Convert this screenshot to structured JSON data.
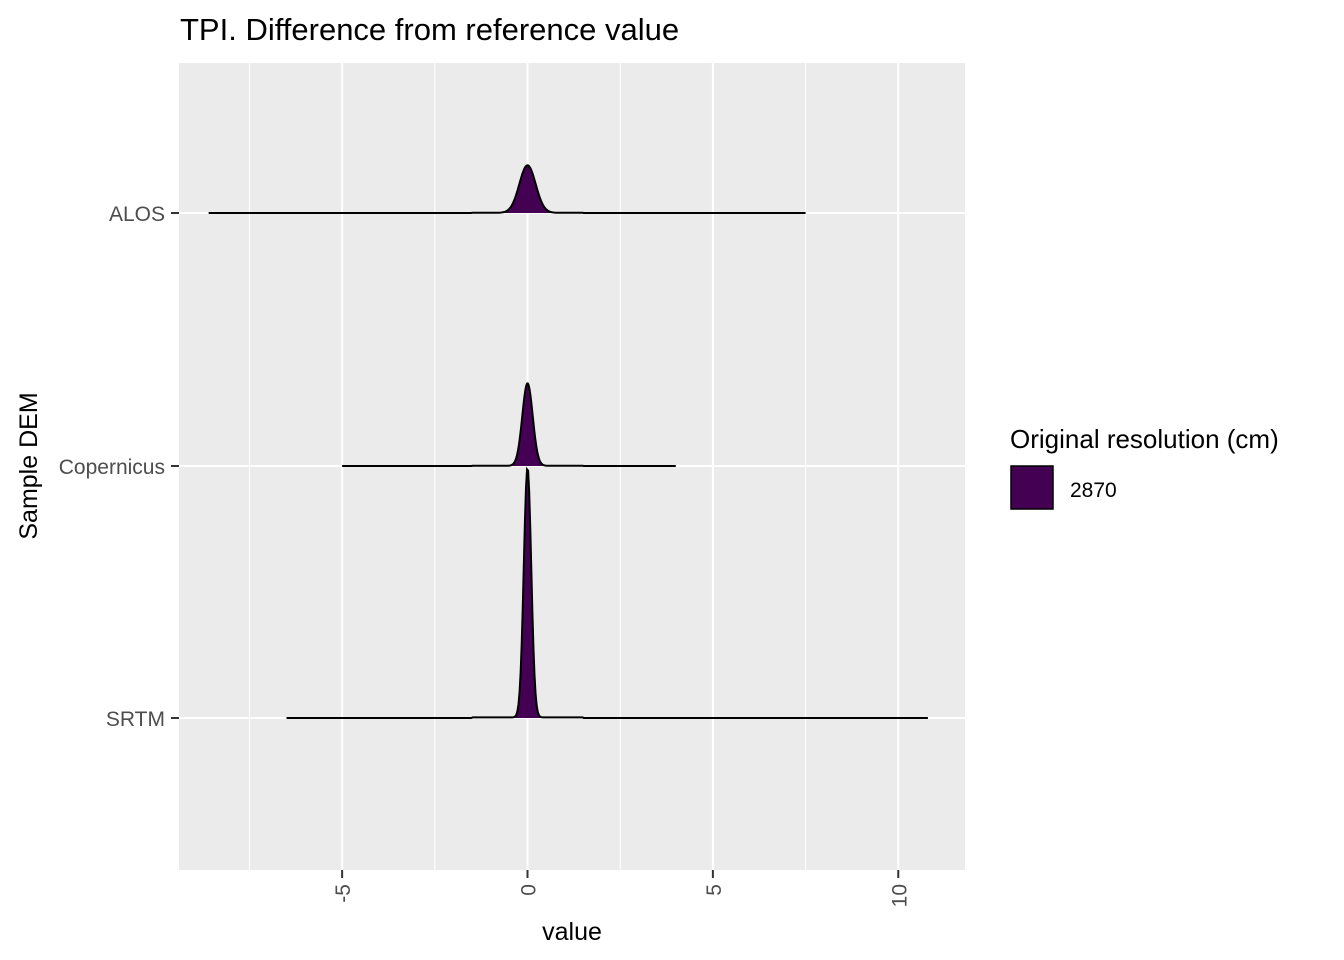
{
  "chart_data": {
    "type": "ridgeline",
    "title": "TPI. Difference from reference value",
    "xlabel": "value",
    "ylabel": "Sample DEM",
    "xlim": [
      -9.4,
      11.8
    ],
    "x_ticks": [
      -5,
      0,
      5,
      10
    ],
    "x_tick_labels": [
      "-5",
      "0",
      "5",
      "10"
    ],
    "x_minor_ticks": [
      -7.5,
      -2.5,
      2.5,
      7.5
    ],
    "grid": true,
    "fill_color": "#440154",
    "line_color": "#000000",
    "panel_color": "#EBEBEB",
    "legend": {
      "title": "Original resolution (cm)",
      "position": "right",
      "entries": [
        {
          "label": "2870",
          "color": "#440154"
        }
      ]
    },
    "series": [
      {
        "category": "ALOS",
        "min": -8.6,
        "max": 7.5,
        "center": 0.0,
        "sigma": 0.22,
        "height": 0.19,
        "tail_rise": 0.2
      },
      {
        "category": "Copernicus",
        "min": -5.0,
        "max": 4.0,
        "center": 0.0,
        "sigma": 0.14,
        "height": 0.33,
        "tail_rise": 0.2
      },
      {
        "category": "SRTM",
        "min": -6.5,
        "max": 10.8,
        "center": 0.0,
        "sigma": 0.1,
        "height": 1.0,
        "tail_rise": 0.6
      }
    ]
  }
}
